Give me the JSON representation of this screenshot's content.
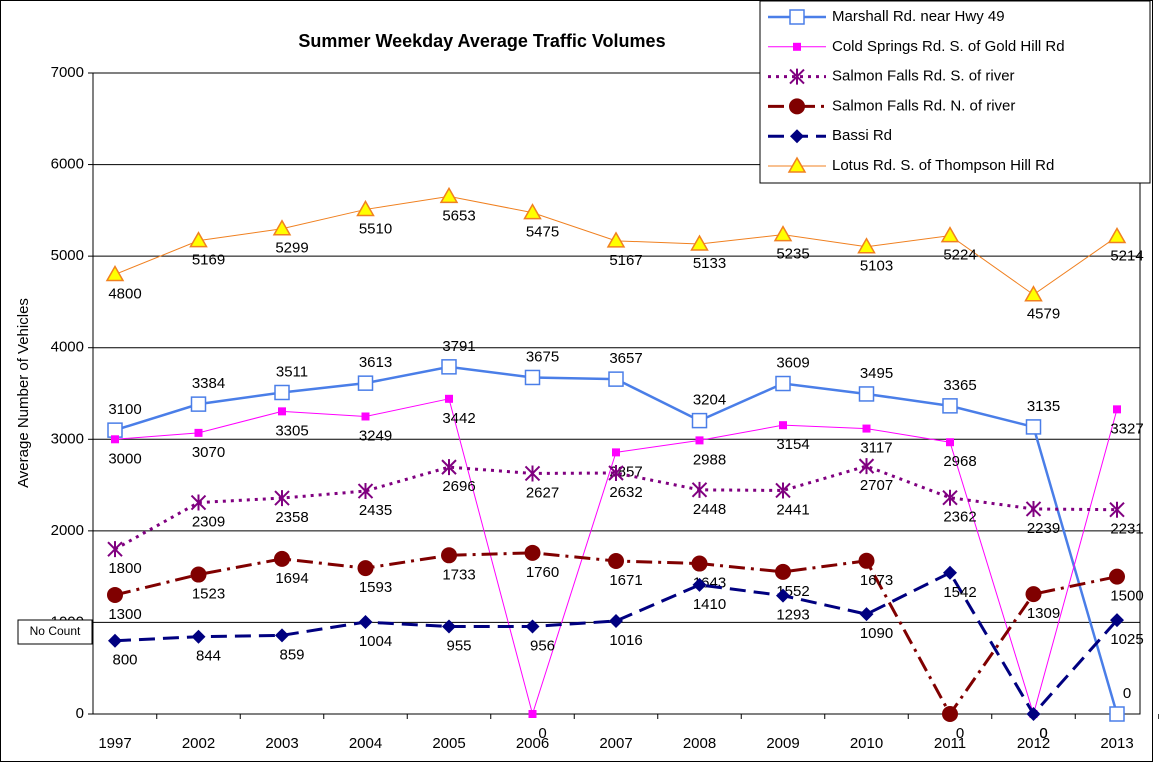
{
  "chart_data": {
    "type": "line",
    "title": "Summer Weekday Average Traffic Volumes",
    "y_label": "Average Number of Vehicles",
    "annotation": "No Count",
    "categories": [
      "1997",
      "2002",
      "2003",
      "2004",
      "2005",
      "2006",
      "2007",
      "2008",
      "2009",
      "2010",
      "2011",
      "2012",
      "2013"
    ],
    "ylim": [
      0,
      7000
    ],
    "yticks": [
      0,
      1000,
      2000,
      3000,
      4000,
      5000,
      6000,
      7000
    ],
    "grid": true,
    "legend": "top-right",
    "series": [
      {
        "name": "Marshall Rd. near Hwy 49",
        "color": "#4a7ee8",
        "marker": "square-open",
        "dash": "solid",
        "values": [
          3100,
          3384,
          3511,
          3613,
          3791,
          3675,
          3657,
          3204,
          3609,
          3495,
          3365,
          3135,
          0
        ]
      },
      {
        "name": "Cold Springs Rd. S. of Gold Hill Rd",
        "color": "#ff00ff",
        "marker": "square",
        "dash": "solid",
        "values": [
          3000,
          3070,
          3305,
          3249,
          3442,
          0,
          2857,
          2988,
          3154,
          3117,
          2968,
          0,
          3327
        ]
      },
      {
        "name": "Salmon Falls Rd. S. of river",
        "color": "#800080",
        "marker": "asterisk",
        "dash": "dot",
        "values": [
          1800,
          2309,
          2358,
          2435,
          2696,
          2627,
          2632,
          2448,
          2441,
          2707,
          2362,
          2239,
          2231
        ]
      },
      {
        "name": "Salmon Falls Rd. N. of river",
        "color": "#800000",
        "marker": "circle",
        "dash": "dashdot",
        "values": [
          1300,
          1523,
          1694,
          1593,
          1733,
          1760,
          1671,
          1643,
          1552,
          1673,
          0,
          1309,
          1500
        ]
      },
      {
        "name": "Bassi Rd",
        "color": "#000080",
        "marker": "diamond",
        "dash": "dash",
        "values": [
          800,
          844,
          859,
          1004,
          955,
          956,
          1016,
          1410,
          1293,
          1090,
          1542,
          0,
          1025
        ]
      },
      {
        "name": "Lotus Rd. S. of Thompson Hill Rd",
        "color": "#f08020",
        "marker": "triangle",
        "dash": "solid",
        "values": [
          4800,
          5169,
          5299,
          5510,
          5653,
          5475,
          5167,
          5133,
          5235,
          5103,
          5224,
          4579,
          5214
        ]
      }
    ]
  }
}
